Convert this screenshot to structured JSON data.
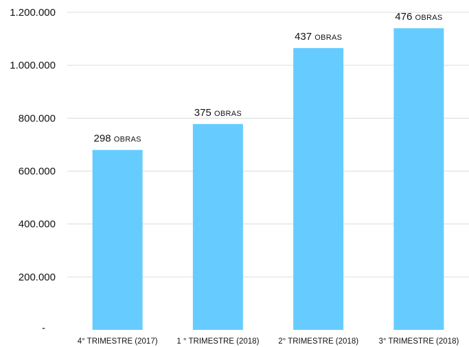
{
  "chart_data": {
    "type": "bar",
    "categories": [
      "4° TRIMESTRE (2017)",
      "1 ° TRIMESTRE (2018)",
      "2° TRIMESTRE  (2018)",
      "3° TRIMESTRE (2018)"
    ],
    "values": [
      680000,
      778000,
      1065000,
      1140000
    ],
    "data_labels": [
      {
        "number": "298",
        "unit": "OBRAS"
      },
      {
        "number": "375",
        "unit": "OBRAS"
      },
      {
        "number": "437",
        "unit": "OBRAS"
      },
      {
        "number": "476",
        "unit": "OBRAS"
      }
    ],
    "yticks": [
      0,
      200000,
      400000,
      600000,
      800000,
      1000000,
      1200000
    ],
    "ytick_labels": [
      "-",
      "200.000",
      "400.000",
      "600.000",
      "800.000",
      "1.000.000",
      "1.200.000"
    ],
    "ylim": [
      0,
      1200000
    ],
    "grid": true,
    "bar_color": "#66ccff",
    "title": "",
    "xlabel": "",
    "ylabel": ""
  }
}
